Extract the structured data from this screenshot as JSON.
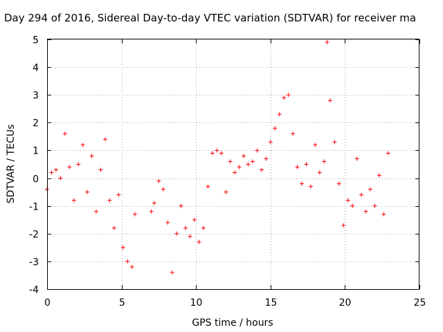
{
  "chart_data": {
    "type": "scatter",
    "title": "Day 294 of 2016, Sidereal Day-to-day VTEC variation (SDTVAR) for receiver ma",
    "xlabel": "GPS time / hours",
    "ylabel": "SDTVAR / TECUs",
    "xlim": [
      0,
      25
    ],
    "ylim": [
      -4,
      5
    ],
    "x_ticks": [
      "0",
      "5",
      "10",
      "15",
      "20",
      "25"
    ],
    "y_ticks": [
      "-4",
      "-3",
      "-2",
      "-1",
      "0",
      "1",
      "2",
      "3",
      "4",
      "5"
    ],
    "grid": true,
    "marker": "plus",
    "color": "#ff0000",
    "series": [
      {
        "x": [
          0.0,
          0.3,
          0.6,
          0.9,
          1.2,
          1.5,
          1.8,
          2.1,
          2.4,
          2.7,
          3.0,
          3.3,
          3.6,
          3.9,
          4.2,
          4.5,
          4.8,
          5.1,
          5.4,
          5.7,
          5.9,
          7.0,
          7.2,
          7.5,
          7.8,
          8.1,
          8.4,
          8.7,
          9.0,
          9.3,
          9.6,
          9.9,
          10.2,
          10.5,
          10.8,
          11.1,
          11.4,
          11.7,
          12.0,
          12.3,
          12.6,
          12.9,
          13.2,
          13.5,
          13.8,
          14.1,
          14.4,
          14.7,
          15.0,
          15.3,
          15.6,
          15.9,
          16.2,
          16.5,
          16.8,
          17.1,
          17.4,
          17.7,
          18.0,
          18.3,
          18.6,
          18.8,
          19.0,
          19.3,
          19.6,
          19.9,
          20.2,
          20.5,
          20.8,
          21.1,
          21.4,
          21.7,
          22.0,
          22.3,
          22.6,
          22.9
        ],
        "y": [
          -0.4,
          0.2,
          0.3,
          0.0,
          1.6,
          0.4,
          -0.8,
          0.5,
          1.2,
          -0.5,
          0.8,
          -1.2,
          0.3,
          1.4,
          -0.8,
          -1.8,
          -0.6,
          -2.5,
          -3.0,
          -3.2,
          -1.3,
          -1.2,
          -0.9,
          -0.1,
          -0.4,
          -1.6,
          -3.4,
          -2.0,
          -1.0,
          -1.8,
          -2.1,
          -1.5,
          -2.3,
          -1.8,
          -0.3,
          0.9,
          1.0,
          0.9,
          -0.5,
          0.6,
          0.2,
          0.4,
          0.8,
          0.5,
          0.6,
          1.0,
          0.3,
          0.7,
          1.3,
          1.8,
          2.3,
          2.9,
          3.0,
          1.6,
          0.4,
          -0.2,
          0.5,
          -0.3,
          1.2,
          0.2,
          0.6,
          4.9,
          2.8,
          1.3,
          -0.2,
          -1.7,
          -0.8,
          -1.0,
          0.7,
          -0.6,
          -1.2,
          -0.4,
          -1.0,
          0.1,
          -1.3,
          0.9
        ]
      }
    ]
  }
}
